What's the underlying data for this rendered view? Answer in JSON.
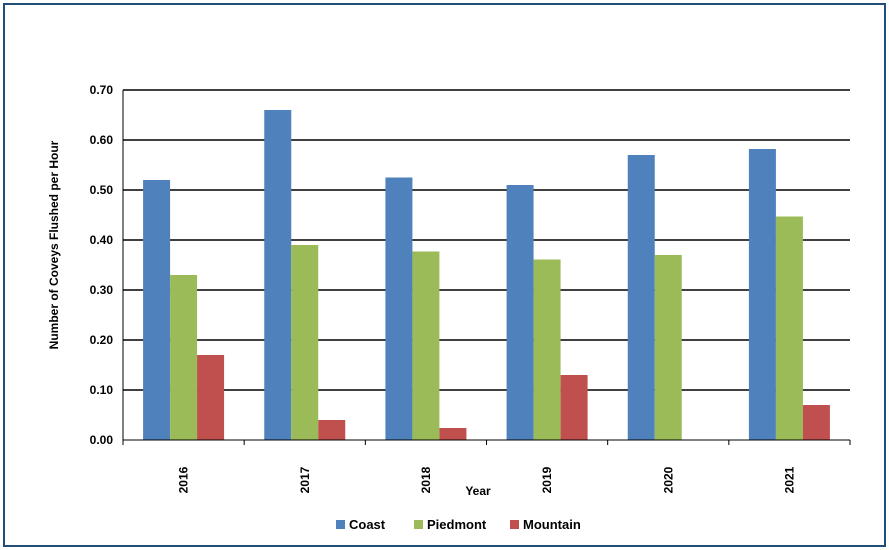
{
  "chart_data": {
    "type": "bar",
    "categories": [
      "2016",
      "2017",
      "2018",
      "2019",
      "2020",
      "2021"
    ],
    "series": [
      {
        "name": "Coast",
        "color": "#4F81BD",
        "values": [
          0.52,
          0.66,
          0.525,
          0.51,
          0.57,
          0.582
        ]
      },
      {
        "name": "Piedmont",
        "color": "#9BBB59",
        "values": [
          0.33,
          0.39,
          0.377,
          0.361,
          0.37,
          0.447
        ]
      },
      {
        "name": "Mountain",
        "color": "#C0504D",
        "values": [
          0.17,
          0.04,
          0.024,
          0.13,
          0.0,
          0.07
        ]
      }
    ],
    "xlabel": "Year",
    "ylabel": "Number of Coveys Flushed per Hour",
    "ylim": [
      0,
      0.7
    ],
    "yticks": [
      "0.00",
      "0.10",
      "0.20",
      "0.30",
      "0.40",
      "0.50",
      "0.60",
      "0.70"
    ],
    "grid": true,
    "legend_position": "bottom"
  }
}
